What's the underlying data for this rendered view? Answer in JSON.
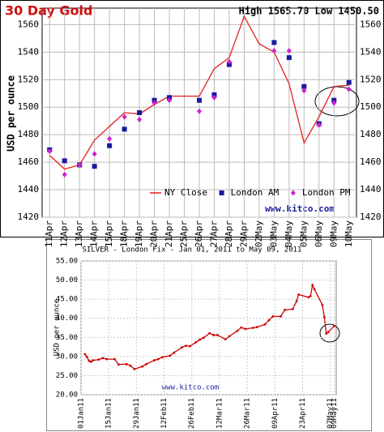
{
  "chart_data": [
    {
      "type": "line",
      "title": "30 Day Gold",
      "subtitle": "High 1565.70 Low 1450.50",
      "ylabel": "USD per ounce",
      "watermark": "www.kitco.com",
      "categories": [
        "11Apr",
        "12Apr",
        "13Apr",
        "14Apr",
        "15Apr",
        "18Apr",
        "19Apr",
        "20Apr",
        "21Apr",
        "25Apr",
        "26Apr",
        "27Apr",
        "28Apr",
        "29Apr",
        "02May",
        "03May",
        "04May",
        "05May",
        "06May",
        "09May",
        "10May"
      ],
      "series": [
        {
          "name": "NY Close",
          "color": "#e02020",
          "style": "line",
          "values": [
            1465,
            1455,
            1458,
            1476,
            1486,
            1496,
            1495,
            1502,
            1508,
            1508,
            1508,
            1528,
            1536,
            1566,
            1546,
            1540,
            1517,
            1474,
            1493,
            1515,
            1516
          ]
        },
        {
          "name": "London AM",
          "color": "#1a1aa0",
          "style": "square",
          "values": [
            1469,
            1461,
            1458,
            1457,
            1472,
            1484,
            1496,
            1505,
            1507,
            null,
            1505,
            1509,
            1531,
            null,
            null,
            1547,
            1536,
            1515,
            1488,
            1505,
            1518
          ]
        },
        {
          "name": "London PM",
          "color": "#d020d0",
          "style": "diamond",
          "values": [
            1468,
            1451,
            1458,
            1466,
            1477,
            1493,
            1491,
            1503,
            1505,
            null,
            1497,
            1507,
            1533,
            null,
            null,
            1541,
            1541,
            1512,
            1487,
            1503,
            1513
          ]
        }
      ],
      "ylim": [
        1420,
        1572
      ],
      "yticks": [
        1420,
        1440,
        1460,
        1480,
        1500,
        1520,
        1540,
        1560
      ],
      "mirror_yticks": true,
      "grid": true
    },
    {
      "type": "line",
      "title": "SILVER - London Fix - Jan 01, 2011 to May 09, 2011",
      "ylabel": "USD per ounce",
      "watermark": "www.kitco.com",
      "x": [
        "2011-01-03",
        "2011-01-04",
        "2011-01-05",
        "2011-01-06",
        "2011-01-07",
        "2011-01-10",
        "2011-01-12",
        "2011-01-14",
        "2011-01-18",
        "2011-01-20",
        "2011-01-24",
        "2011-01-26",
        "2011-01-28",
        "2011-02-01",
        "2011-02-03",
        "2011-02-07",
        "2011-02-09",
        "2011-02-11",
        "2011-02-15",
        "2011-02-17",
        "2011-02-21",
        "2011-02-23",
        "2011-02-25",
        "2011-02-28",
        "2011-03-02",
        "2011-03-04",
        "2011-03-07",
        "2011-03-09",
        "2011-03-11",
        "2011-03-15",
        "2011-03-17",
        "2011-03-21",
        "2011-03-23",
        "2011-03-25",
        "2011-03-29",
        "2011-03-31",
        "2011-04-04",
        "2011-04-06",
        "2011-04-08",
        "2011-04-12",
        "2011-04-14",
        "2011-04-18",
        "2011-04-20",
        "2011-04-21",
        "2011-04-26",
        "2011-04-27",
        "2011-04-28",
        "2011-04-29",
        "2011-05-03",
        "2011-05-04",
        "2011-05-05",
        "2011-05-06",
        "2011-05-09"
      ],
      "series": [
        {
          "name": "London Fix",
          "color": "#cc0000",
          "style": "line-dots",
          "values": [
            30.6,
            29.9,
            28.9,
            28.6,
            29.0,
            29.2,
            29.6,
            29.3,
            29.3,
            27.9,
            28.0,
            27.6,
            26.7,
            27.4,
            28.0,
            29.0,
            29.3,
            29.8,
            30.2,
            31.0,
            32.4,
            32.8,
            32.7,
            33.7,
            34.4,
            34.9,
            36.1,
            35.6,
            35.6,
            34.5,
            35.3,
            36.7,
            37.6,
            37.2,
            37.5,
            37.7,
            38.4,
            39.5,
            40.5,
            40.5,
            42.2,
            42.4,
            44.5,
            46.2,
            45.5,
            45.8,
            48.7,
            47.6,
            43.5,
            40.3,
            36.0,
            36.4,
            38.0
          ]
        }
      ],
      "xlim": [
        "2011-01-01",
        "2011-05-10"
      ],
      "xticks": [
        {
          "value": "2011-01-01",
          "label": "01Jan11"
        },
        {
          "value": "2011-01-15",
          "label": "15Jan11"
        },
        {
          "value": "2011-01-29",
          "label": "29Jan11"
        },
        {
          "value": "2011-02-12",
          "label": "12Feb11"
        },
        {
          "value": "2011-02-26",
          "label": "26Feb11"
        },
        {
          "value": "2011-03-12",
          "label": "12Mar11"
        },
        {
          "value": "2011-03-26",
          "label": "26Mar11"
        },
        {
          "value": "2011-04-09",
          "label": "09Apr11"
        },
        {
          "value": "2011-04-23",
          "label": "23Apr11"
        },
        {
          "value": "2011-05-07",
          "label": "07May11"
        },
        {
          "value": "2011-05-09",
          "label": "09May11"
        }
      ],
      "ylim": [
        20,
        55
      ],
      "yticks": [
        {
          "value": 20,
          "label": "20.00"
        },
        {
          "value": 25,
          "label": "25.00"
        },
        {
          "value": 30,
          "label": "30.00"
        },
        {
          "value": 35,
          "label": "35.00"
        },
        {
          "value": 40,
          "label": "40.00"
        },
        {
          "value": 45,
          "label": "45.00"
        },
        {
          "value": 50,
          "label": "50.00"
        },
        {
          "value": 55,
          "label": "55.00"
        }
      ],
      "grid": true
    }
  ]
}
